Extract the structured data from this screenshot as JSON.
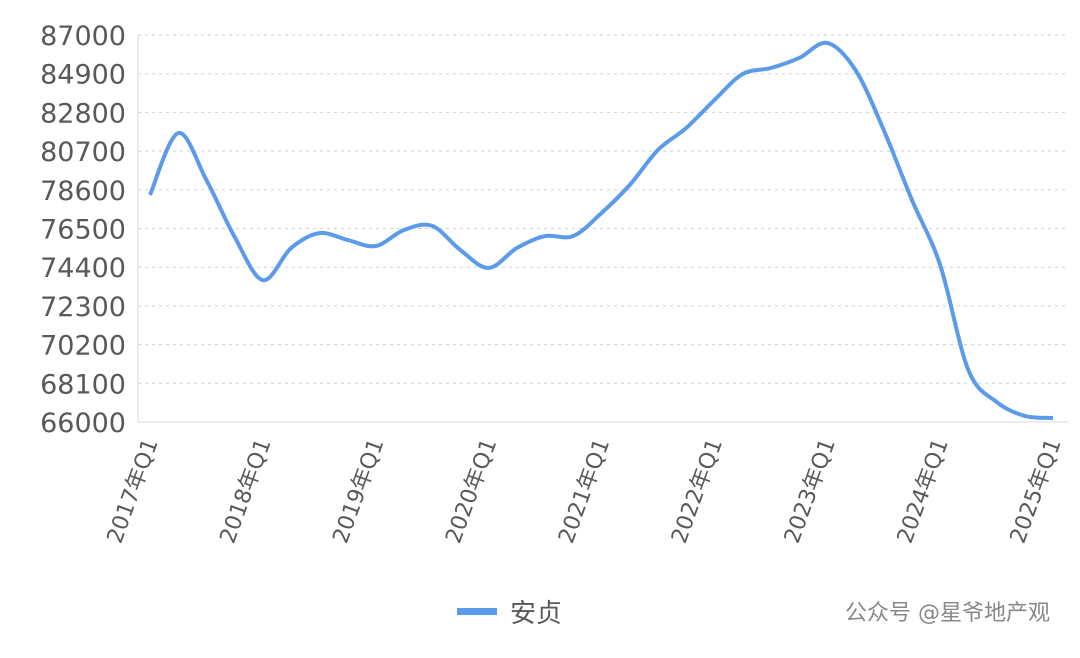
{
  "chart_data": {
    "type": "line",
    "categories": [
      "2017年Q1",
      null,
      null,
      null,
      "2018年Q1",
      null,
      null,
      null,
      "2019年Q1",
      null,
      null,
      null,
      "2020年Q1",
      null,
      null,
      null,
      "2021年Q1",
      null,
      null,
      null,
      "2022年Q1",
      null,
      null,
      null,
      "2023年Q1",
      null,
      null,
      null,
      "2024年Q1",
      null,
      null,
      null,
      "2025年Q1"
    ],
    "series": [
      {
        "name": "安贞",
        "color": "#5b9bea",
        "values": [
          78320,
          81680,
          79130,
          76040,
          73700,
          75440,
          76250,
          75880,
          75550,
          76420,
          76640,
          75330,
          74360,
          75440,
          76090,
          76090,
          77340,
          78860,
          80760,
          81950,
          83470,
          84880,
          85210,
          85750,
          86570,
          85100,
          81850,
          78050,
          74520,
          68820,
          67090,
          66330,
          66220
        ]
      }
    ],
    "ylim": [
      66000,
      87000
    ],
    "yticks": [
      66000,
      68100,
      70200,
      72300,
      74400,
      76500,
      78600,
      80700,
      82800,
      84900,
      87000
    ],
    "grid": true,
    "legend": "bottom",
    "watermark": "公众号 @星爷地产观"
  }
}
